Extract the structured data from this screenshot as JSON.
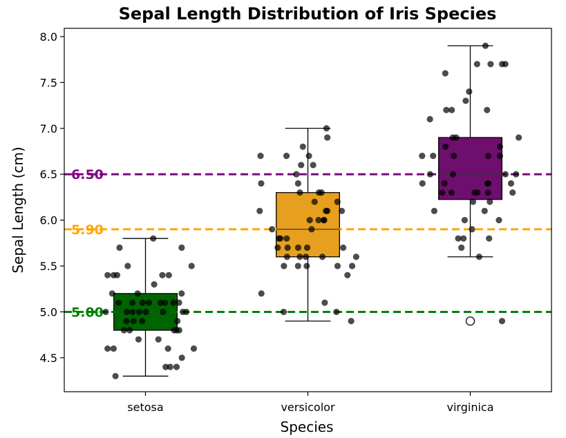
{
  "chart_data": {
    "type": "box",
    "title": "Sepal Length Distribution of Iris Species",
    "xlabel": "Species",
    "ylabel": "Sepal Length (cm)",
    "categories": [
      "setosa",
      "versicolor",
      "virginica"
    ],
    "ylim": [
      4.13,
      8.09
    ],
    "yticks": [
      "4.5",
      "5.0",
      "5.5",
      "6.0",
      "6.5",
      "7.0",
      "7.5",
      "8.0"
    ],
    "grid": false,
    "boxes": [
      {
        "name": "setosa",
        "color": "#006400",
        "min": 4.3,
        "q1": 4.8,
        "median": 5.0,
        "q3": 5.2,
        "max": 5.8,
        "outliers": []
      },
      {
        "name": "versicolor",
        "color": "#E69F1F",
        "min": 4.9,
        "q1": 5.6,
        "median": 5.9,
        "q3": 6.3,
        "max": 7.0,
        "outliers": []
      },
      {
        "name": "virginica",
        "color": "#6E0F6E",
        "min": 5.6,
        "q1": 6.225,
        "median": 6.5,
        "q3": 6.9,
        "max": 7.9,
        "outliers": [
          4.9
        ]
      }
    ],
    "median_lines": [
      {
        "value": 5.0,
        "label": "5.00",
        "color": "#008000"
      },
      {
        "value": 5.9,
        "label": "5.90",
        "color": "#FFA500"
      },
      {
        "value": 6.5,
        "label": "6.50",
        "color": "#800080"
      }
    ],
    "points": [
      [
        5.1,
        4.9,
        4.7,
        4.6,
        5.0,
        5.4,
        4.6,
        5.0,
        4.4,
        4.9,
        5.4,
        4.8,
        4.8,
        4.3,
        5.8,
        5.7,
        5.4,
        5.1,
        5.7,
        5.1,
        5.4,
        5.1,
        4.6,
        5.1,
        4.8,
        5.0,
        5.0,
        5.2,
        5.2,
        4.7,
        4.8,
        5.4,
        5.2,
        5.5,
        4.9,
        5.0,
        5.5,
        4.9,
        4.4,
        5.1,
        5.0,
        4.5,
        4.4,
        5.0,
        5.1,
        4.8,
        5.1,
        4.6,
        5.3,
        5.0
      ],
      [
        7.0,
        6.4,
        6.9,
        5.5,
        6.5,
        5.7,
        6.3,
        4.9,
        6.6,
        5.2,
        5.0,
        5.9,
        6.0,
        6.1,
        5.6,
        6.7,
        5.6,
        5.8,
        6.2,
        5.6,
        5.9,
        6.1,
        6.3,
        6.1,
        6.4,
        6.6,
        6.8,
        6.7,
        6.0,
        5.7,
        5.5,
        5.5,
        5.8,
        6.0,
        5.4,
        6.0,
        6.7,
        6.3,
        5.6,
        5.5,
        5.5,
        6.1,
        5.8,
        5.0,
        5.6,
        5.7,
        5.7,
        6.2,
        5.1,
        5.7
      ],
      [
        6.3,
        5.8,
        7.1,
        6.3,
        6.5,
        7.6,
        7.3,
        6.7,
        7.2,
        6.5,
        6.4,
        6.8,
        5.7,
        5.8,
        6.4,
        6.5,
        7.7,
        7.7,
        6.0,
        6.9,
        5.6,
        7.7,
        6.3,
        6.7,
        7.2,
        6.2,
        6.1,
        6.4,
        7.2,
        7.4,
        7.9,
        6.4,
        6.3,
        6.1,
        7.7,
        6.3,
        6.4,
        6.0,
        6.9,
        6.7,
        6.9,
        5.8,
        6.8,
        6.7,
        6.7,
        6.3,
        6.5,
        6.2,
        5.9,
        4.9
      ]
    ],
    "point_color": "#000000"
  }
}
